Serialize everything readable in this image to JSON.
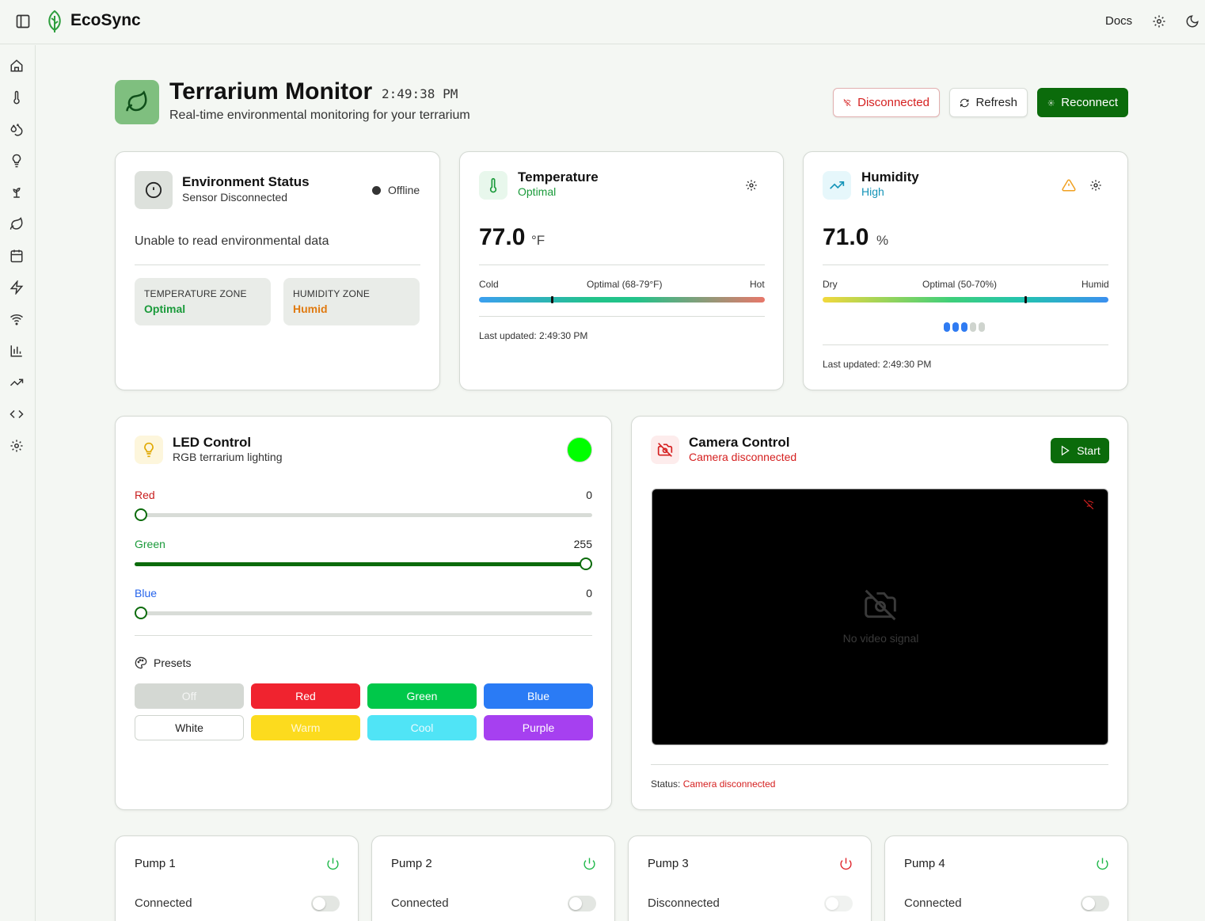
{
  "app": {
    "brand": "EcoSync",
    "nav": {
      "docs": "Docs"
    },
    "sidebar_icons": [
      "home-icon",
      "thermometer-icon",
      "droplets-icon",
      "lightbulb-icon",
      "sprout-icon",
      "leaf-icon",
      "calendar-icon",
      "zap-icon",
      "wifi-icon",
      "bar-chart-icon",
      "trending-up-icon",
      "code-icon",
      "settings-icon"
    ]
  },
  "header": {
    "title": "Terrarium Monitor",
    "time": "2:49:38 PM",
    "subtitle": "Real-time environmental monitoring for your terrarium",
    "buttons": {
      "disconnected": "Disconnected",
      "refresh": "Refresh",
      "reconnect": "Reconnect"
    }
  },
  "environment": {
    "title": "Environment Status",
    "subtitle": "Sensor Disconnected",
    "status": "Offline",
    "message": "Unable to read environmental data",
    "temperature_zone": {
      "label": "TEMPERATURE ZONE",
      "value": "Optimal",
      "color": "#1a9a3a"
    },
    "humidity_zone": {
      "label": "HUMIDITY ZONE",
      "value": "Humid",
      "color": "#e07a10"
    }
  },
  "temperature": {
    "title": "Temperature",
    "status": "Optimal",
    "value": "77.0",
    "unit": "°F",
    "scale": {
      "low": "Cold",
      "mid": "Optimal (68-79°F)",
      "high": "Hot"
    },
    "position_fraction": 0.255,
    "updated": "Last updated: 2:49:30 PM"
  },
  "humidity": {
    "title": "Humidity",
    "status": "High",
    "value": "71.0",
    "unit": "%",
    "scale": {
      "low": "Dry",
      "mid": "Optimal (50-70%)",
      "high": "Humid"
    },
    "position_fraction": 0.71,
    "level_dots": {
      "filled": 3,
      "total": 5
    },
    "updated": "Last updated: 2:49:30 PM"
  },
  "led": {
    "title": "LED Control",
    "subtitle": "RGB terrarium lighting",
    "preview_color": "#00ff00",
    "channels": [
      {
        "label": "Red",
        "value": "0",
        "max": 255,
        "color": "#c81e1e"
      },
      {
        "label": "Green",
        "value": "255",
        "max": 255,
        "color": "#1a9a3a"
      },
      {
        "label": "Blue",
        "value": "0",
        "max": 255,
        "color": "#2563eb"
      }
    ],
    "presets_label": "Presets",
    "presets": [
      {
        "label": "Off",
        "bg": "#d4d8d3",
        "fg": "#f4f5f4"
      },
      {
        "label": "Red",
        "bg": "#f0232f",
        "fg": "#ffffff"
      },
      {
        "label": "Green",
        "bg": "#00c84a",
        "fg": "#ffffff"
      },
      {
        "label": "Blue",
        "bg": "#2a7bf5",
        "fg": "#ffffff"
      },
      {
        "label": "White",
        "bg": "#ffffff",
        "fg": "#222222"
      },
      {
        "label": "Warm",
        "bg": "#fcdb1e",
        "fg": "#fff9d8"
      },
      {
        "label": "Cool",
        "bg": "#50e4f6",
        "fg": "#e8fbff"
      },
      {
        "label": "Purple",
        "bg": "#a640f0",
        "fg": "#ffffff"
      }
    ]
  },
  "camera": {
    "title": "Camera Control",
    "subtitle": "Camera disconnected",
    "start": "Start",
    "no_signal": "No video signal",
    "status_label": "Status:",
    "status_value": "Camera disconnected"
  },
  "pumps": [
    {
      "name": "Pump 1",
      "status": "Connected",
      "power_color": "#1fb84a"
    },
    {
      "name": "Pump 2",
      "status": "Connected",
      "power_color": "#1fb84a"
    },
    {
      "name": "Pump 3",
      "status": "Disconnected",
      "power_color": "#e0262d"
    },
    {
      "name": "Pump 4",
      "status": "Connected",
      "power_color": "#1fb84a"
    }
  ]
}
